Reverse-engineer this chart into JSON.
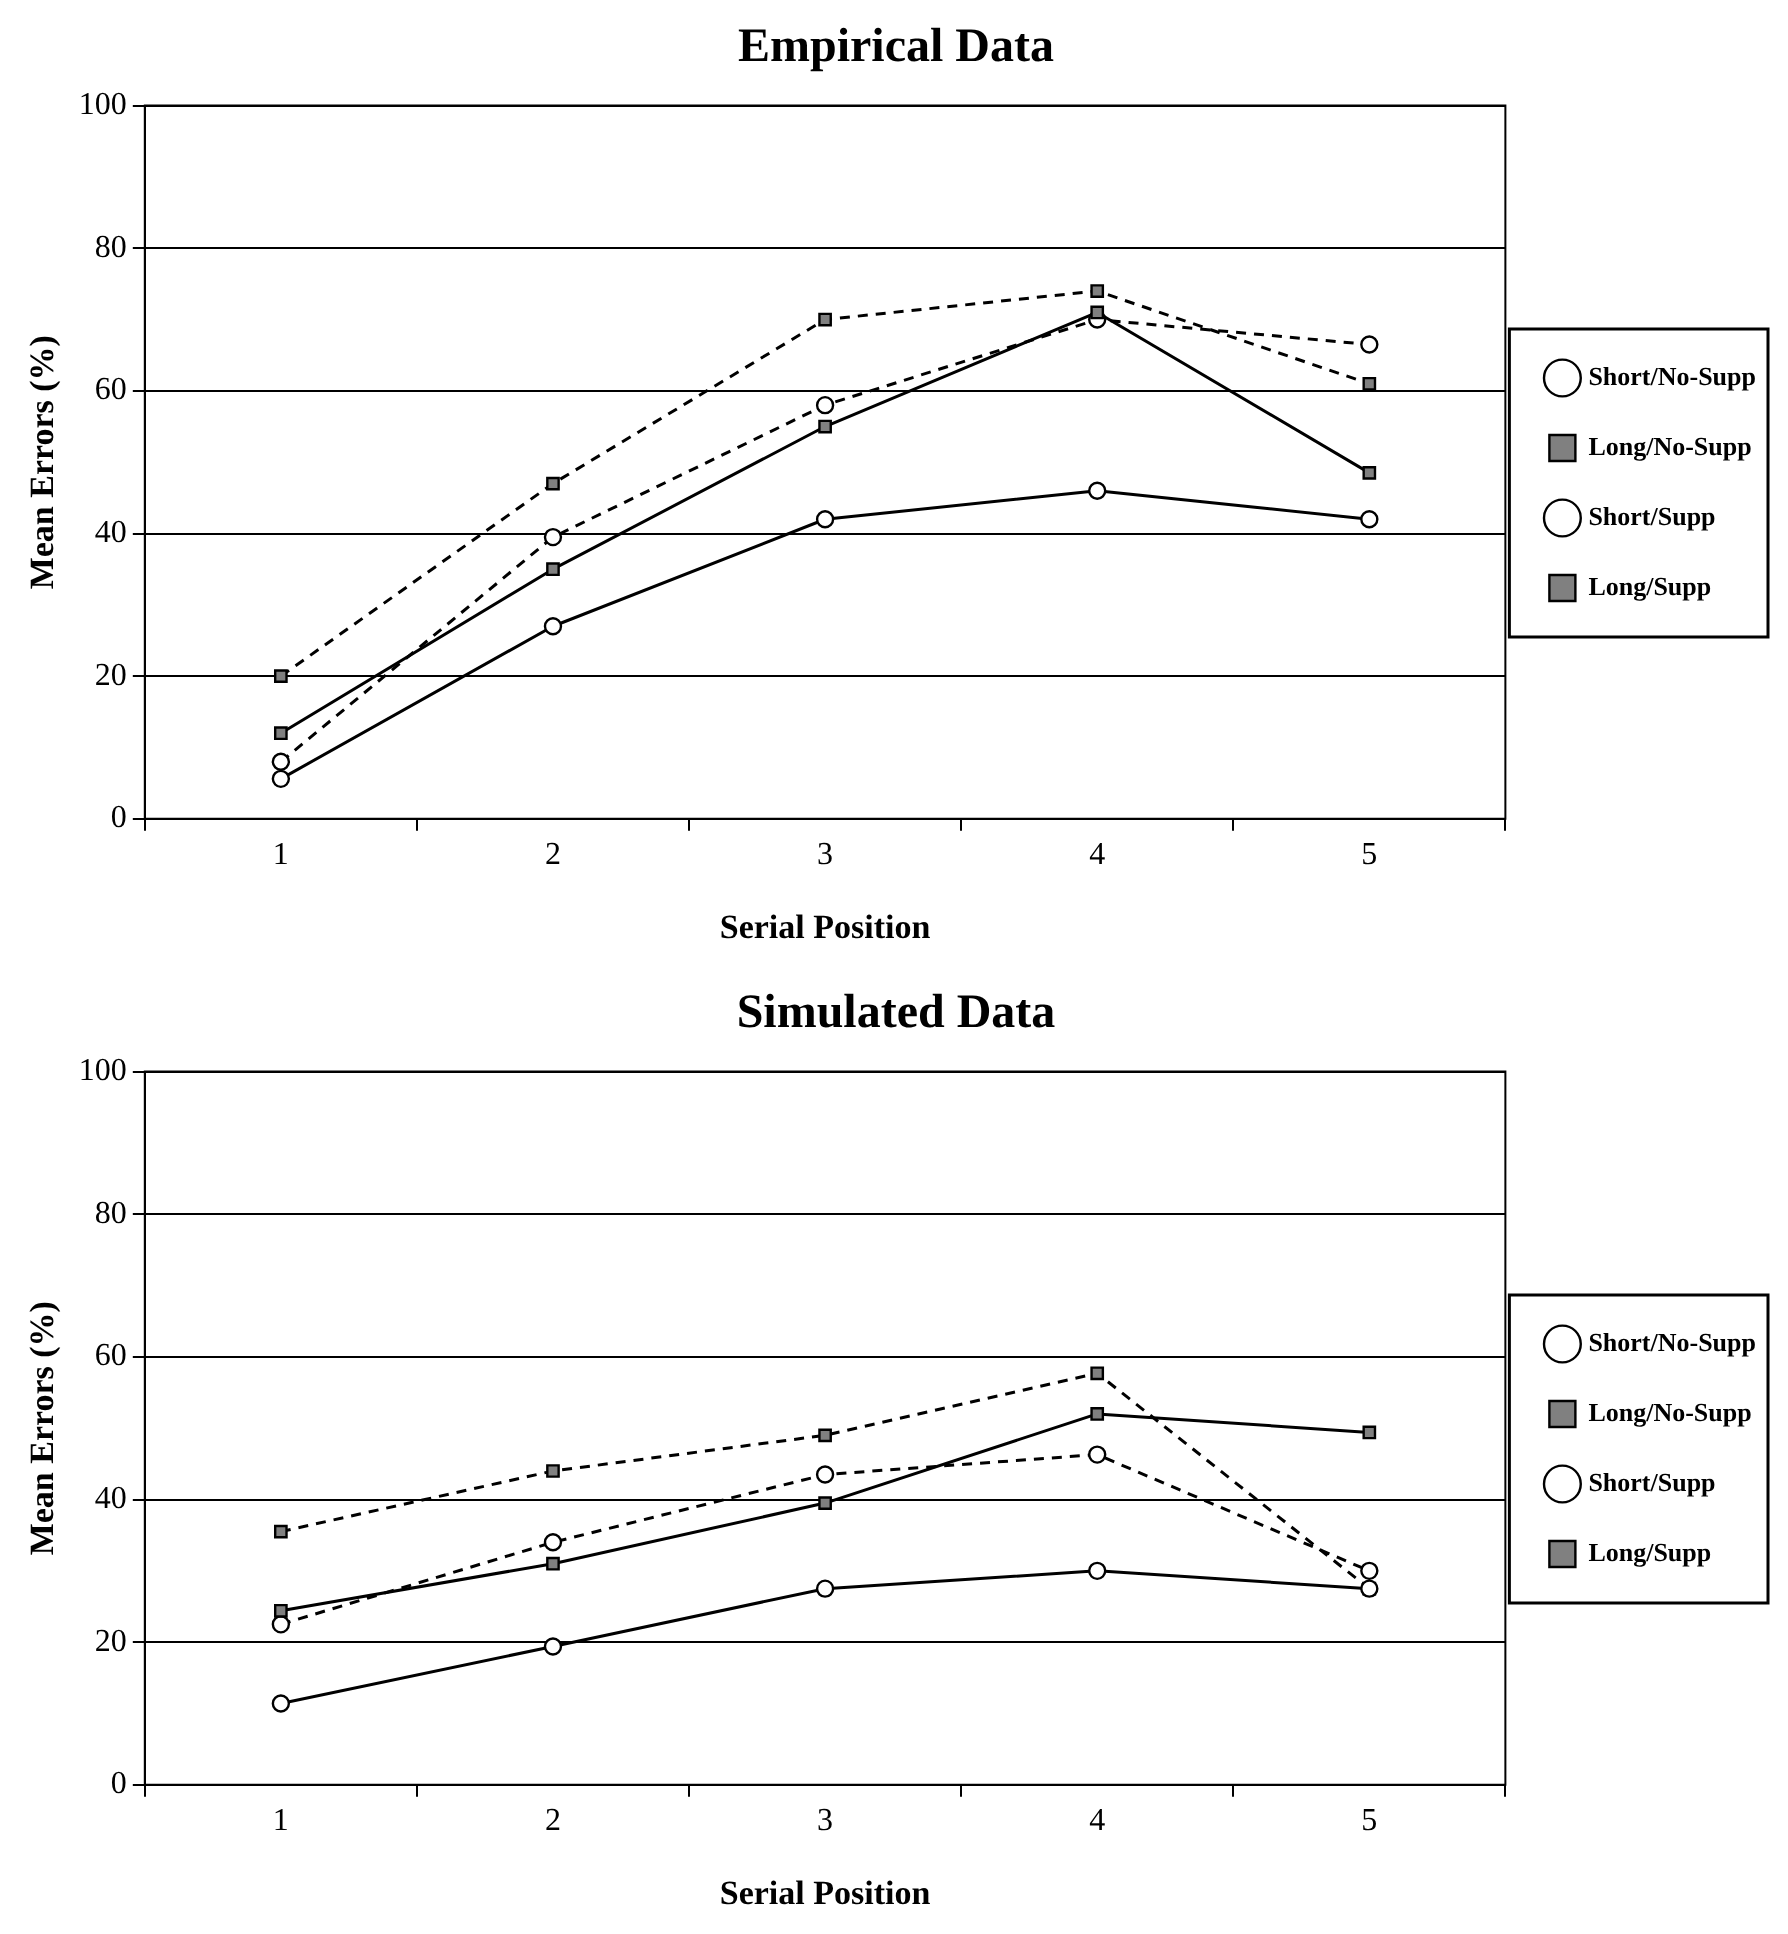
{
  "chart_data": [
    {
      "type": "line",
      "title": "Empirical Data",
      "xlabel": "Serial Position",
      "ylabel": "Mean Errors (%)",
      "categories": [
        "1",
        "2",
        "3",
        "4",
        "5"
      ],
      "ylim": [
        0,
        100
      ],
      "yticks": [
        0,
        20,
        40,
        60,
        80,
        100
      ],
      "grid": "y",
      "legend": "right",
      "series": [
        {
          "name": "Short/No-Supp",
          "color": "#000000",
          "marker": "circle",
          "line_style": "solid",
          "values": [
            5.6,
            27,
            42,
            46,
            42
          ]
        },
        {
          "name": "Long/No-Supp",
          "color": "#000000",
          "marker": "square",
          "line_style": "solid",
          "values": [
            12,
            35,
            55,
            71,
            48.5
          ]
        },
        {
          "name": "Short/Supp",
          "color": "#000000",
          "marker": "circle",
          "line_style": "dashed",
          "values": [
            8,
            39.5,
            58,
            70,
            66.5
          ]
        },
        {
          "name": "Long/Supp",
          "color": "#000000",
          "marker": "square",
          "line_style": "dashed",
          "values": [
            20,
            47,
            70,
            74,
            61
          ]
        }
      ]
    },
    {
      "type": "line",
      "title": "Simulated Data",
      "xlabel": "Serial Position",
      "ylabel": "Mean Errors (%)",
      "categories": [
        "1",
        "2",
        "3",
        "4",
        "5"
      ],
      "ylim": [
        0,
        100
      ],
      "yticks": [
        0,
        20,
        40,
        60,
        80,
        100
      ],
      "grid": "y",
      "legend": "right",
      "series": [
        {
          "name": "Short/No-Supp",
          "color": "#000000",
          "marker": "circle",
          "line_style": "solid",
          "values": [
            11.4,
            19.4,
            27.5,
            30,
            27.5
          ]
        },
        {
          "name": "Long/No-Supp",
          "color": "#000000",
          "marker": "square",
          "line_style": "solid",
          "values": [
            24.4,
            31,
            39.5,
            52,
            49.4
          ]
        },
        {
          "name": "Short/Supp",
          "color": "#000000",
          "marker": "circle",
          "line_style": "dashed",
          "values": [
            22.5,
            34,
            43.5,
            46.3,
            30
          ]
        },
        {
          "name": "Long/Supp",
          "color": "#000000",
          "marker": "square",
          "line_style": "dashed",
          "values": [
            35.5,
            44,
            49,
            57.7,
            27.5
          ]
        }
      ]
    }
  ]
}
